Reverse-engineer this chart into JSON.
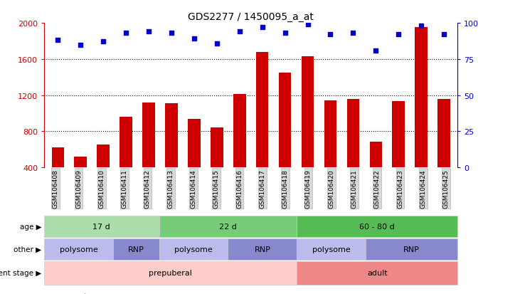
{
  "title": "GDS2277 / 1450095_a_at",
  "samples": [
    "GSM106408",
    "GSM106409",
    "GSM106410",
    "GSM106411",
    "GSM106412",
    "GSM106413",
    "GSM106414",
    "GSM106415",
    "GSM106416",
    "GSM106417",
    "GSM106418",
    "GSM106419",
    "GSM106420",
    "GSM106421",
    "GSM106422",
    "GSM106423",
    "GSM106424",
    "GSM106425"
  ],
  "counts": [
    620,
    520,
    650,
    960,
    1120,
    1110,
    940,
    840,
    1210,
    1680,
    1450,
    1630,
    1140,
    1160,
    680,
    1130,
    1950,
    1160
  ],
  "percentile_ranks": [
    88,
    85,
    87,
    93,
    94,
    93,
    89,
    86,
    94,
    97,
    93,
    99,
    92,
    93,
    81,
    92,
    98,
    92
  ],
  "ylim_left": [
    400,
    2000
  ],
  "ylim_right": [
    0,
    100
  ],
  "yticks_left": [
    400,
    800,
    1200,
    1600,
    2000
  ],
  "yticks_right": [
    0,
    25,
    50,
    75,
    100
  ],
  "bar_color": "#CC0000",
  "dot_color": "#0000CC",
  "age_groups": [
    {
      "label": "17 d",
      "start": 0,
      "end": 5,
      "color": "#AADDAA"
    },
    {
      "label": "22 d",
      "start": 5,
      "end": 11,
      "color": "#77CC77"
    },
    {
      "label": "60 - 80 d",
      "start": 11,
      "end": 18,
      "color": "#55BB55"
    }
  ],
  "other_groups": [
    {
      "label": "polysome",
      "start": 0,
      "end": 3,
      "color": "#BBBBEE"
    },
    {
      "label": "RNP",
      "start": 3,
      "end": 5,
      "color": "#8888CC"
    },
    {
      "label": "polysome",
      "start": 5,
      "end": 8,
      "color": "#BBBBEE"
    },
    {
      "label": "RNP",
      "start": 8,
      "end": 11,
      "color": "#8888CC"
    },
    {
      "label": "polysome",
      "start": 11,
      "end": 14,
      "color": "#BBBBEE"
    },
    {
      "label": "RNP",
      "start": 14,
      "end": 18,
      "color": "#8888CC"
    }
  ],
  "devstage_groups": [
    {
      "label": "prepuberal",
      "start": 0,
      "end": 11,
      "color": "#FFCCCC"
    },
    {
      "label": "adult",
      "start": 11,
      "end": 18,
      "color": "#EE8888"
    }
  ],
  "bg_color": "#FFFFFF"
}
